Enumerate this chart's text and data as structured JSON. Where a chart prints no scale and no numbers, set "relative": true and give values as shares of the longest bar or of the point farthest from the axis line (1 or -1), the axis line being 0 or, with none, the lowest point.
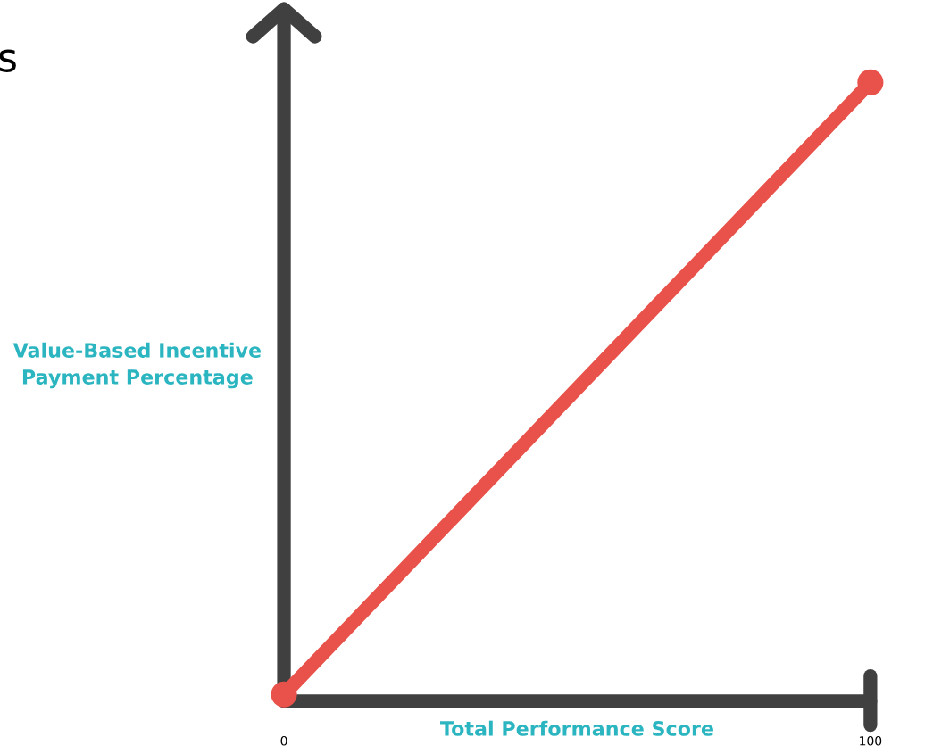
{
  "chart_data": {
    "type": "line",
    "xlabel": "Total Performance Score",
    "ylabel": "Value-Based Incentive\nPayment Percentage",
    "x": [
      0,
      100
    ],
    "relative": true,
    "xlim": [
      0,
      100
    ],
    "xticks": [
      0,
      100
    ],
    "marker": "circle",
    "line_style": "solid",
    "grid": false,
    "legend": false,
    "series": [
      {
        "color": "#e8524a",
        "values": [
          0,
          1
        ]
      }
    ],
    "annotations": [
      "s"
    ]
  }
}
